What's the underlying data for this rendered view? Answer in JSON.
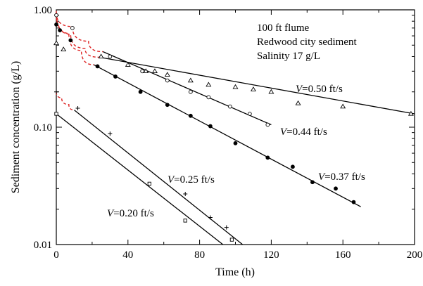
{
  "chart_data": {
    "type": "scatter",
    "title": "",
    "xlabel": "Time (h)",
    "ylabel": "Sediment concentration (g/L)",
    "xlim": [
      0,
      200
    ],
    "ylim": [
      0.01,
      1.0
    ],
    "yscale": "log",
    "grid": false,
    "x_ticks": [
      0,
      40,
      80,
      120,
      160,
      200
    ],
    "x_tick_labels": [
      "0",
      "40",
      "80",
      "120",
      "160",
      "200"
    ],
    "y_ticks": [
      0.01,
      0.1,
      1.0
    ],
    "y_tick_labels": [
      "0.01",
      "0.10",
      "1.00"
    ],
    "annotations": [
      "100 ft flume",
      "Redwood city sediment",
      "Salinity 17 g/L"
    ],
    "series": [
      {
        "name": "V=0.50 ft/s",
        "label_var": "V",
        "label_rest": "=0.50 ft/s",
        "marker": "triangle-open",
        "x": [
          0,
          4,
          25,
          40,
          50,
          55,
          62,
          75,
          85,
          100,
          110,
          120,
          135,
          160,
          198
        ],
        "y": [
          0.52,
          0.46,
          0.4,
          0.34,
          0.3,
          0.3,
          0.28,
          0.25,
          0.23,
          0.22,
          0.21,
          0.2,
          0.16,
          0.15,
          0.13
        ],
        "fit": {
          "x": [
            24,
            200
          ],
          "y": [
            0.395,
            0.13
          ]
        },
        "curve": {
          "x": [
            0,
            8,
            16,
            24
          ],
          "y": [
            0.93,
            0.62,
            0.47,
            0.395
          ]
        }
      },
      {
        "name": "V=0.44 ft/s",
        "label_var": "V",
        "label_rest": "=0.44 ft/s",
        "marker": "circle-open",
        "x": [
          0,
          9,
          30,
          48,
          62,
          75,
          85,
          97,
          108,
          118
        ],
        "y": [
          0.9,
          0.7,
          0.4,
          0.3,
          0.25,
          0.2,
          0.18,
          0.15,
          0.13,
          0.105
        ],
        "fit": {
          "x": [
            26,
            120
          ],
          "y": [
            0.44,
            0.105
          ]
        },
        "curve": {
          "x": [
            0,
            9,
            18,
            26
          ],
          "y": [
            0.95,
            0.72,
            0.54,
            0.44
          ]
        }
      },
      {
        "name": "V=0.37 ft/s",
        "label_var": "V",
        "label_rest": "=0.37 ft/s",
        "marker": "circle-filled",
        "x": [
          0,
          2,
          8,
          23,
          33,
          47,
          62,
          75,
          86,
          100,
          118,
          132,
          143,
          156,
          166
        ],
        "y": [
          0.75,
          0.67,
          0.55,
          0.33,
          0.27,
          0.2,
          0.155,
          0.125,
          0.102,
          0.073,
          0.055,
          0.046,
          0.034,
          0.03,
          0.023
        ],
        "fit": {
          "x": [
            21,
            170
          ],
          "y": [
            0.34,
            0.021
          ]
        },
        "curve": {
          "x": [
            0,
            7,
            14,
            21
          ],
          "y": [
            0.98,
            0.63,
            0.45,
            0.34
          ]
        }
      },
      {
        "name": "V=0.25 ft/s",
        "label_var": "V",
        "label_rest": "=0.25 ft/s",
        "marker": "plus",
        "x": [
          0,
          12,
          30,
          72,
          86,
          95
        ],
        "y": [
          0.2,
          0.145,
          0.088,
          0.027,
          0.017,
          0.014
        ],
        "fit": {
          "x": [
            10,
            104
          ],
          "y": [
            0.14,
            0.01
          ]
        },
        "curve": {
          "x": [
            0,
            3,
            7,
            10
          ],
          "y": [
            0.2,
            0.178,
            0.156,
            0.14
          ]
        }
      },
      {
        "name": "V=0.20 ft/s",
        "label_var": "V",
        "label_rest": "=0.20 ft/s",
        "marker": "square-open",
        "x": [
          0,
          52,
          72,
          98
        ],
        "y": [
          0.13,
          0.033,
          0.016,
          0.011
        ],
        "fit": {
          "x": [
            0,
            93
          ],
          "y": [
            0.13,
            0.01
          ]
        }
      }
    ],
    "colors": {
      "points": "#000000",
      "fit_line": "#000000",
      "extrapolation": "#dd2222"
    }
  }
}
